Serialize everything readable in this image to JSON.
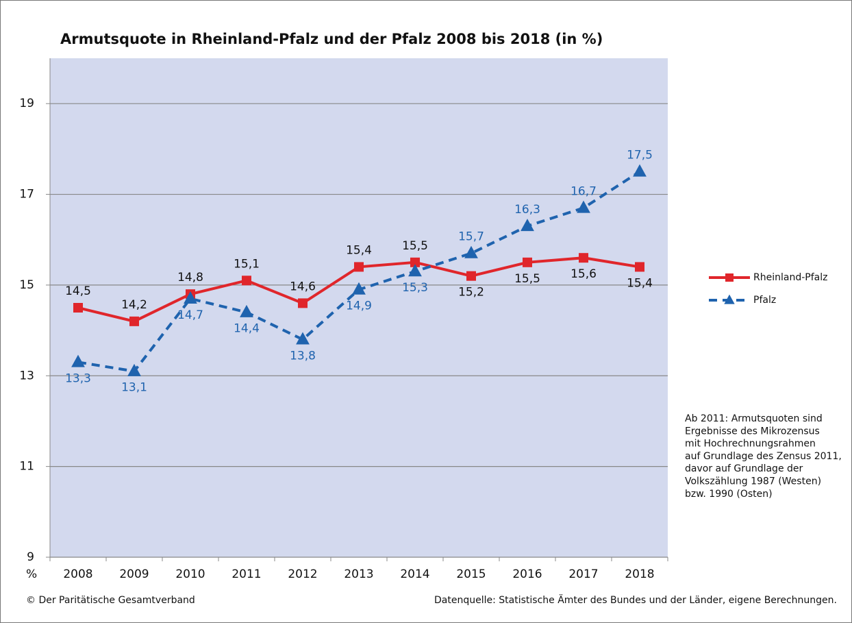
{
  "chart_data": {
    "type": "line",
    "title": "Armutsquote in Rheinland-Pfalz und der Pfalz 2008 bis 2018 (in %)",
    "ylabel": "%",
    "categories": [
      "2008",
      "2009",
      "2010",
      "2011",
      "2012",
      "2013",
      "2014",
      "2015",
      "2016",
      "2017",
      "2018"
    ],
    "series": [
      {
        "name": "Rheinland-Pfalz",
        "color": "#e0262b",
        "marker": "square",
        "dashed": false,
        "values": [
          14.5,
          14.2,
          14.8,
          15.1,
          14.6,
          15.4,
          15.5,
          15.2,
          15.5,
          15.6,
          15.4
        ],
        "value_labels": [
          "14,5",
          "14,2",
          "14,8",
          "15,1",
          "14,6",
          "15,4",
          "15,5",
          "15,2",
          "15,5",
          "15,6",
          "15,4"
        ]
      },
      {
        "name": "Pfalz",
        "color": "#1f63ae",
        "marker": "triangle",
        "dashed": true,
        "values": [
          13.3,
          13.1,
          14.7,
          14.4,
          13.8,
          14.9,
          15.3,
          15.7,
          16.3,
          16.7,
          17.5
        ],
        "value_labels": [
          "13,3",
          "13,1",
          "14,7",
          "14,4",
          "13,8",
          "14,9",
          "15,3",
          "15,7",
          "16,3",
          "16,7",
          "17,5"
        ]
      }
    ],
    "ylim": [
      9,
      20
    ],
    "yticks": [
      9,
      11,
      13,
      15,
      17,
      19
    ],
    "grid": true,
    "legend": "right",
    "note": [
      "Ab 2011: Armutsquoten sind",
      "Ergebnisse des  Mikrozensus",
      "mit Hochrechnungsrahmen",
      "auf Grundlage des Zensus 2011,",
      "davor auf Grundlage der",
      "Volkszählung 1987 (Westen)",
      "bzw. 1990 (Osten)"
    ],
    "footer_left": "© Der Paritätische Gesamtverband",
    "footer_right": "Datenquelle: Statistische Ämter des Bundes und der Länder, eigene Berechnungen."
  }
}
